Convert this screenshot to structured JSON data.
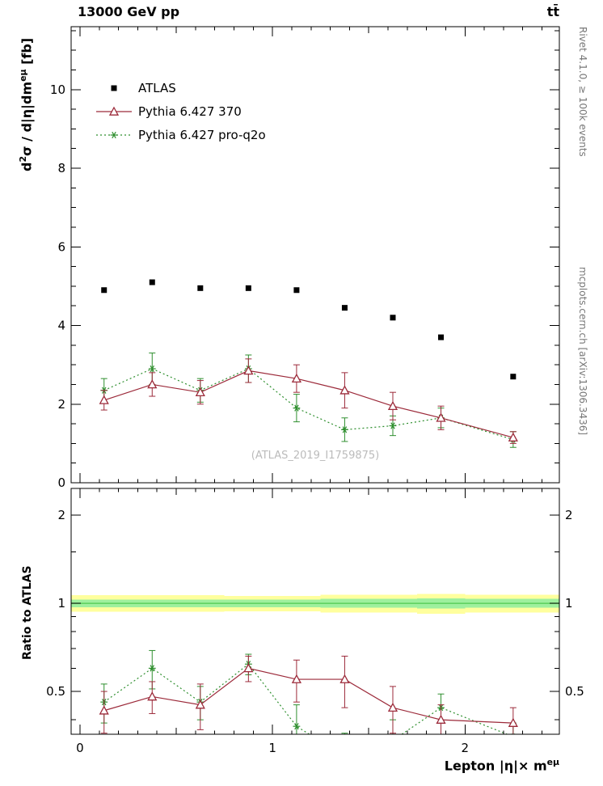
{
  "chart_data": {
    "type": "line",
    "title": "13000 GeV pp",
    "title_right": "tt̄",
    "labels": {
      "ylabel": {
        "pre": "d",
        "sup1": "2",
        "mid": "σ / d|η|dm",
        "sup2": "eμ",
        "post": " [fb]"
      },
      "ratio_ylabel": "Ratio to ATLAS",
      "xlabel": {
        "pre": "Lepton |η|× m",
        "sup": "eμ"
      },
      "watermark": "(ATLAS_2019_I1759875)",
      "rivet_note": "Rivet 4.1.0, ≥ 100k events",
      "mcplots_note": "mcplots.cern.ch [arXiv:1306.3436]"
    },
    "axes": {
      "x": {
        "min": -0.046,
        "max": 2.49,
        "majors": [
          0,
          1,
          2
        ],
        "mediums": [
          0.5,
          1.5
        ],
        "minor_step": 0.1
      },
      "y_main": {
        "min": 0,
        "max": 11.6,
        "majors": [
          0,
          2,
          4,
          6,
          8,
          10
        ],
        "minor_step": 0.5
      },
      "y_ratio": {
        "min": 0.357,
        "max": 2.47,
        "log": true,
        "majors": [
          0.5,
          1,
          2
        ],
        "major_labels": [
          "0.5",
          "1",
          "2"
        ],
        "minors": [
          0.4,
          0.6,
          0.7,
          0.8,
          0.9,
          1.5
        ]
      }
    },
    "bin_edges": [
      0,
      0.25,
      0.5,
      0.75,
      1.0,
      1.25,
      1.5,
      1.75,
      2.0,
      2.5
    ],
    "x": [
      0.125,
      0.375,
      0.625,
      0.875,
      1.125,
      1.375,
      1.625,
      1.875,
      2.25
    ],
    "series": [
      {
        "name": "ATLAS",
        "type": "data",
        "marker": "square",
        "color": "#000000",
        "values": [
          4.9,
          5.1,
          4.95,
          4.95,
          4.9,
          4.45,
          4.2,
          3.7,
          2.7
        ]
      },
      {
        "name": "Pythia 6.427 370",
        "type": "mc",
        "marker": "triangle-open",
        "color": "#9c2a3a",
        "line": "solid",
        "values": [
          2.1,
          2.5,
          2.3,
          2.85,
          2.65,
          2.35,
          1.95,
          1.65,
          1.15
        ],
        "errors": [
          0.25,
          0.3,
          0.3,
          0.3,
          0.35,
          0.45,
          0.35,
          0.3,
          0.15
        ]
      },
      {
        "name": "Pythia 6.427 pro-q2o",
        "type": "mc",
        "marker": "star",
        "color": "#2f8f2f",
        "line": "dotted",
        "values": [
          2.35,
          2.9,
          2.35,
          2.9,
          1.9,
          1.35,
          1.45,
          1.65,
          1.1
        ],
        "errors": [
          0.3,
          0.4,
          0.3,
          0.35,
          0.35,
          0.3,
          0.25,
          0.25,
          0.2
        ]
      }
    ],
    "ratio": {
      "band_yellow_color": "#ffff9e",
      "band_green_color": "#9ef09e",
      "band_line_color": "#4ec94e",
      "yellow_band": [
        [
          0.935,
          1.065
        ],
        [
          0.935,
          1.065
        ],
        [
          0.935,
          1.065
        ],
        [
          0.94,
          1.06
        ],
        [
          0.94,
          1.06
        ],
        [
          0.93,
          1.07
        ],
        [
          0.93,
          1.07
        ],
        [
          0.92,
          1.075
        ],
        [
          0.93,
          1.07
        ]
      ],
      "green_band": [
        [
          0.97,
          1.03
        ],
        [
          0.97,
          1.03
        ],
        [
          0.97,
          1.03
        ],
        [
          0.97,
          1.03
        ],
        [
          0.97,
          1.03
        ],
        [
          0.965,
          1.035
        ],
        [
          0.965,
          1.035
        ],
        [
          0.96,
          1.04
        ],
        [
          0.965,
          1.035
        ]
      ],
      "series": [
        {
          "name": "Pythia 6.427 370",
          "color": "#9c2a3a",
          "marker": "triangle-open",
          "line": "solid",
          "values": [
            0.43,
            0.48,
            0.45,
            0.6,
            0.55,
            0.55,
            0.44,
            0.4,
            0.39
          ],
          "errors": [
            0.07,
            0.06,
            0.08,
            0.06,
            0.09,
            0.11,
            0.08,
            0.05,
            0.05
          ]
        },
        {
          "name": "Pythia 6.427 pro-q2o",
          "color": "#2f8f2f",
          "marker": "star",
          "line": "dotted",
          "values": [
            0.46,
            0.6,
            0.46,
            0.62,
            0.38,
            0.3,
            0.34,
            0.44,
            0.35
          ],
          "errors": [
            0.07,
            0.09,
            0.06,
            0.05,
            0.07,
            0.06,
            0.06,
            0.05,
            0.04
          ]
        }
      ]
    }
  }
}
